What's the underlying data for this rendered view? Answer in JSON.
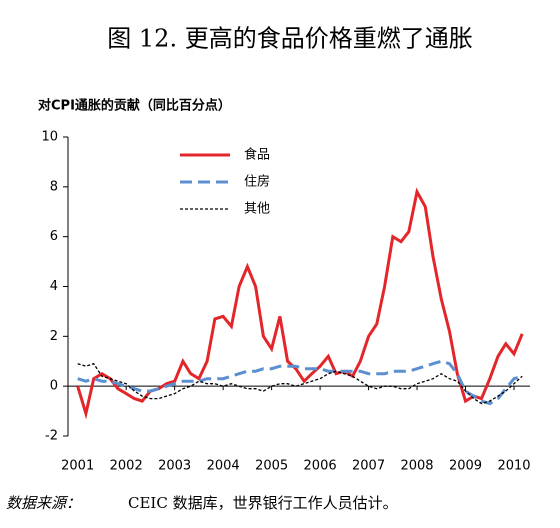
{
  "chart_data": {
    "type": "line",
    "title": "图 12. 更高的食品价格重燃了通胀",
    "ylabel": "对CPI通胀的贡献（同比百分点）",
    "source_label": "数据来源：",
    "source": "CEIC 数据库，世界银行工作人员估计。",
    "x": [
      2001,
      2001.17,
      2001.33,
      2001.5,
      2001.67,
      2001.83,
      2002,
      2002.17,
      2002.33,
      2002.5,
      2002.67,
      2002.83,
      2003,
      2003.17,
      2003.33,
      2003.5,
      2003.67,
      2003.83,
      2004,
      2004.17,
      2004.33,
      2004.5,
      2004.67,
      2004.83,
      2005,
      2005.17,
      2005.33,
      2005.5,
      2005.67,
      2005.83,
      2006,
      2006.17,
      2006.33,
      2006.5,
      2006.67,
      2006.83,
      2007,
      2007.17,
      2007.33,
      2007.5,
      2007.67,
      2007.83,
      2008,
      2008.17,
      2008.33,
      2008.5,
      2008.67,
      2008.83,
      2009,
      2009.17,
      2009.33,
      2009.5,
      2009.67,
      2009.83,
      2010,
      2010.17
    ],
    "xlim": [
      2000.8,
      2010.33
    ],
    "xticks": [
      2001,
      2002,
      2003,
      2004,
      2005,
      2006,
      2007,
      2008,
      2009,
      2010
    ],
    "ylim": [
      -2,
      10
    ],
    "yticks": [
      -2,
      0,
      2,
      4,
      6,
      8,
      10
    ],
    "legend": "upper-left",
    "series": [
      {
        "name": "食品",
        "color": "#e3262a",
        "dash": "solid",
        "values": [
          0.0,
          -1.1,
          0.3,
          0.5,
          0.3,
          -0.1,
          -0.3,
          -0.5,
          -0.6,
          -0.2,
          -0.1,
          0.1,
          0.2,
          1.0,
          0.5,
          0.3,
          1.0,
          2.7,
          2.8,
          2.4,
          4.0,
          4.8,
          4.0,
          2.0,
          1.5,
          2.8,
          1.0,
          0.7,
          0.2,
          0.5,
          0.8,
          1.2,
          0.5,
          0.6,
          0.4,
          1.0,
          2.0,
          2.5,
          4.0,
          6.0,
          5.8,
          6.2,
          7.8,
          7.2,
          5.2,
          3.5,
          2.2,
          0.5,
          -0.6,
          -0.4,
          -0.5,
          0.3,
          1.2,
          1.7,
          1.3,
          2.1
        ]
      },
      {
        "name": "住房",
        "color": "#5b8fd0",
        "dash": "dashed",
        "values": [
          0.3,
          0.2,
          0.3,
          0.2,
          0.2,
          0.1,
          0.0,
          -0.1,
          -0.2,
          -0.2,
          -0.1,
          0.0,
          0.1,
          0.2,
          0.2,
          0.2,
          0.3,
          0.3,
          0.3,
          0.4,
          0.5,
          0.6,
          0.6,
          0.7,
          0.7,
          0.8,
          0.8,
          0.8,
          0.7,
          0.7,
          0.7,
          0.6,
          0.6,
          0.6,
          0.6,
          0.6,
          0.5,
          0.5,
          0.5,
          0.6,
          0.6,
          0.6,
          0.7,
          0.8,
          0.9,
          1.0,
          0.9,
          0.5,
          -0.2,
          -0.4,
          -0.6,
          -0.7,
          -0.5,
          -0.1,
          0.3,
          0.4
        ]
      },
      {
        "name": "其他",
        "color": "#000000",
        "dash": "dotted",
        "values": [
          0.9,
          0.8,
          0.9,
          0.4,
          0.3,
          0.2,
          0.1,
          -0.2,
          -0.4,
          -0.5,
          -0.5,
          -0.4,
          -0.3,
          -0.1,
          0.0,
          0.2,
          0.1,
          0.1,
          0.0,
          0.1,
          0.0,
          -0.1,
          -0.1,
          -0.2,
          0.0,
          0.1,
          0.1,
          0.0,
          0.1,
          0.2,
          0.3,
          0.5,
          0.6,
          0.5,
          0.4,
          0.2,
          0.0,
          -0.1,
          0.0,
          0.0,
          -0.1,
          -0.1,
          0.1,
          0.2,
          0.3,
          0.5,
          0.3,
          0.2,
          -0.2,
          -0.5,
          -0.7,
          -0.6,
          -0.4,
          -0.2,
          0.1,
          0.4
        ]
      }
    ]
  }
}
